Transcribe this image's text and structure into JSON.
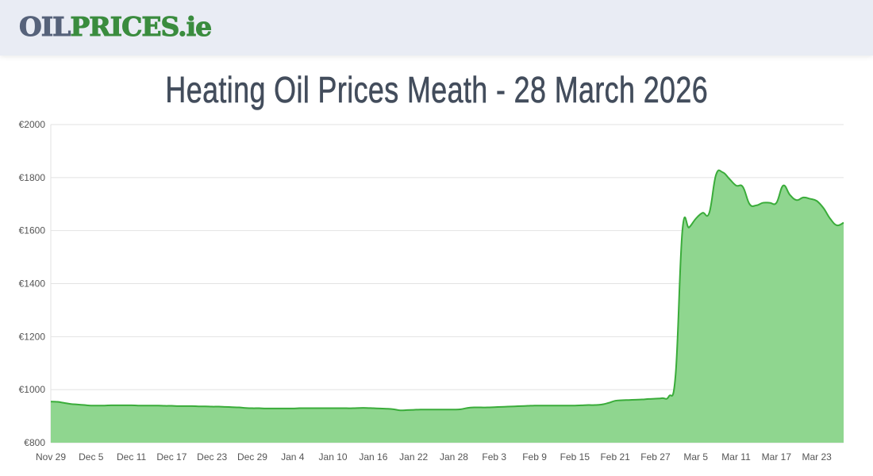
{
  "header": {
    "logo_part1": "OIL",
    "logo_part2": "PRICES.ie"
  },
  "title": "Heating Oil Prices Meath - 28 March 2026",
  "colors": {
    "line": "#3aac3a",
    "fill": "#8fd68f",
    "grid": "#e2e2e2",
    "title": "#434d5c"
  },
  "chart_data": {
    "type": "area",
    "title": "Heating Oil Prices Meath - 28 March 2026",
    "xlabel": "",
    "ylabel": "",
    "ylim": [
      800,
      2000
    ],
    "y_ticks": [
      "€800",
      "€1000",
      "€1200",
      "€1400",
      "€1600",
      "€1800",
      "€2000"
    ],
    "y_tick_values": [
      800,
      1000,
      1200,
      1400,
      1600,
      1800,
      2000
    ],
    "x_ticks": [
      "Nov 29",
      "Dec 5",
      "Dec 11",
      "Dec 17",
      "Dec 23",
      "Dec 29",
      "Jan 4",
      "Jan 10",
      "Jan 16",
      "Jan 22",
      "Jan 28",
      "Feb 3",
      "Feb 9",
      "Feb 15",
      "Feb 21",
      "Feb 27",
      "Mar 5",
      "Mar 11",
      "Mar 17",
      "Mar 23"
    ],
    "grid": true,
    "x": [
      "Nov 29",
      "Nov 30",
      "Dec 1",
      "Dec 2",
      "Dec 3",
      "Dec 4",
      "Dec 5",
      "Dec 6",
      "Dec 7",
      "Dec 8",
      "Dec 9",
      "Dec 10",
      "Dec 11",
      "Dec 12",
      "Dec 13",
      "Dec 14",
      "Dec 15",
      "Dec 16",
      "Dec 17",
      "Dec 18",
      "Dec 19",
      "Dec 20",
      "Dec 21",
      "Dec 22",
      "Dec 23",
      "Dec 24",
      "Dec 25",
      "Dec 26",
      "Dec 27",
      "Dec 28",
      "Dec 29",
      "Dec 30",
      "Dec 31",
      "Jan 1",
      "Jan 2",
      "Jan 3",
      "Jan 4",
      "Jan 5",
      "Jan 6",
      "Jan 7",
      "Jan 8",
      "Jan 9",
      "Jan 10",
      "Jan 11",
      "Jan 12",
      "Jan 13",
      "Jan 14",
      "Jan 15",
      "Jan 16",
      "Jan 17",
      "Jan 18",
      "Jan 19",
      "Jan 20",
      "Jan 21",
      "Jan 22",
      "Jan 23",
      "Jan 24",
      "Jan 25",
      "Jan 26",
      "Jan 27",
      "Jan 28",
      "Jan 29",
      "Jan 30",
      "Jan 31",
      "Feb 1",
      "Feb 2",
      "Feb 3",
      "Feb 4",
      "Feb 5",
      "Feb 6",
      "Feb 7",
      "Feb 8",
      "Feb 9",
      "Feb 10",
      "Feb 11",
      "Feb 12",
      "Feb 13",
      "Feb 14",
      "Feb 15",
      "Feb 16",
      "Feb 17",
      "Feb 18",
      "Feb 19",
      "Feb 20",
      "Feb 21",
      "Feb 22",
      "Feb 23",
      "Feb 24",
      "Feb 25",
      "Feb 26",
      "Feb 27",
      "Feb 28",
      "Mar 1",
      "Mar 2",
      "Mar 3",
      "Mar 4",
      "Mar 5",
      "Mar 6",
      "Mar 7",
      "Mar 8",
      "Mar 9",
      "Mar 10",
      "Mar 11",
      "Mar 12",
      "Mar 13",
      "Mar 14",
      "Mar 15",
      "Mar 16",
      "Mar 17",
      "Mar 18",
      "Mar 19",
      "Mar 20",
      "Mar 21",
      "Mar 22",
      "Mar 23",
      "Mar 24",
      "Mar 25",
      "Mar 26",
      "Mar 27"
    ],
    "values": [
      955,
      954,
      950,
      946,
      944,
      942,
      940,
      940,
      940,
      941,
      941,
      941,
      941,
      940,
      940,
      940,
      940,
      939,
      939,
      938,
      938,
      938,
      937,
      937,
      936,
      936,
      935,
      934,
      933,
      931,
      930,
      930,
      929,
      929,
      929,
      929,
      929,
      930,
      930,
      930,
      930,
      930,
      930,
      930,
      930,
      930,
      931,
      931,
      930,
      929,
      928,
      926,
      922,
      923,
      924,
      925,
      925,
      925,
      925,
      925,
      925,
      926,
      931,
      933,
      933,
      933,
      934,
      935,
      936,
      937,
      938,
      939,
      940,
      940,
      940,
      940,
      940,
      940,
      940,
      941,
      942,
      942,
      944,
      950,
      958,
      960,
      961,
      962,
      963,
      965,
      966,
      968,
      975,
      1060,
      1600,
      1612,
      1645,
      1667,
      1667,
      1810,
      1820,
      1795,
      1770,
      1765,
      1700,
      1695,
      1705,
      1705,
      1705,
      1770,
      1735,
      1715,
      1725,
      1720,
      1712,
      1685,
      1645,
      1620,
      1630
    ]
  }
}
